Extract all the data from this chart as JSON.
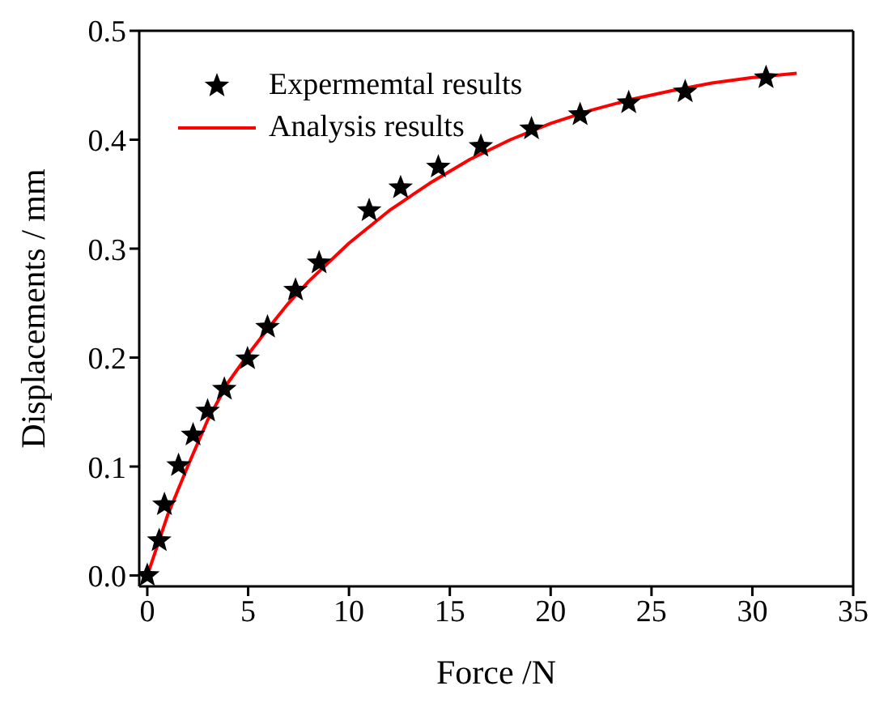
{
  "chart_data": {
    "type": "scatter",
    "xlabel": "Force /N",
    "ylabel": "Displacements / mm",
    "xlim": [
      -0.4,
      35
    ],
    "xticks": [
      0,
      5,
      10,
      15,
      20,
      25,
      30,
      35
    ],
    "ylim": [
      -0.01,
      0.5
    ],
    "yticks": [
      {
        "value": 0,
        "label": "0.0"
      },
      0.1,
      0.2,
      0.3,
      0.4,
      0.5
    ],
    "legend": "top left",
    "grid": false,
    "marker": "star",
    "series": [
      {
        "name": "Expermemtal results",
        "color": "#000000",
        "x": [
          0,
          0.59,
          0.85,
          1.55,
          2.27,
          2.99,
          3.82,
          4.97,
          5.96,
          7.35,
          8.52,
          11.0,
          12.56,
          14.43,
          16.54,
          19.05,
          21.46,
          23.87,
          26.67,
          30.68
        ],
        "values": [
          0,
          0.032,
          0.065,
          0.101,
          0.129,
          0.151,
          0.171,
          0.199,
          0.228,
          0.262,
          0.287,
          0.335,
          0.356,
          0.375,
          0.394,
          0.41,
          0.423,
          0.434,
          0.444,
          0.457
        ]
      },
      {
        "name": "Analysis results",
        "type": "line",
        "color": "#ff0000",
        "marker": "none",
        "line_style": "solid",
        "x": [
          0,
          1,
          2,
          3,
          4,
          5,
          6,
          7,
          8,
          10,
          12,
          14,
          16,
          18,
          20,
          22,
          24,
          26,
          28,
          30,
          32.2
        ],
        "values": [
          0,
          0.055,
          0.1,
          0.143,
          0.177,
          0.203,
          0.227,
          0.25,
          0.27,
          0.305,
          0.335,
          0.36,
          0.382,
          0.4,
          0.415,
          0.427,
          0.437,
          0.445,
          0.452,
          0.457,
          0.461
        ]
      }
    ]
  }
}
